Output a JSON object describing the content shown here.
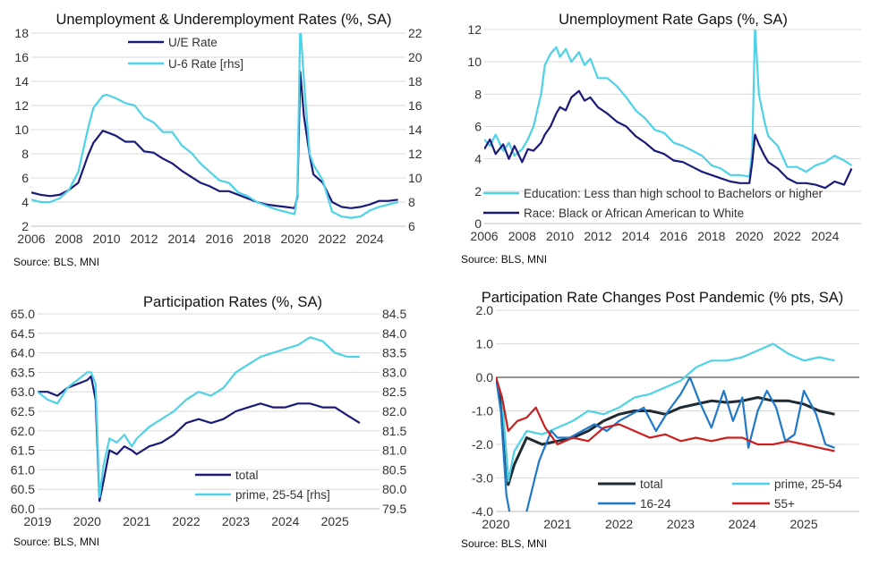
{
  "colors": {
    "dark_navy": "#1a1a7a",
    "light_cyan": "#4dd2e8",
    "black": "#1f2a33",
    "mid_blue": "#1f78c8",
    "red": "#cc1f1f",
    "grid": "#d9d9d9"
  },
  "chart_data": [
    {
      "id": "unemp",
      "type": "line",
      "title": "Unemployment & Underemployment Rates (%, SA)",
      "source": "Source: BLS, MNI",
      "x_ticks": [
        "2006",
        "2008",
        "2010",
        "2012",
        "2014",
        "2016",
        "2018",
        "2020",
        "2022",
        "2024"
      ],
      "y_ticks": [
        "2",
        "4",
        "6",
        "8",
        "10",
        "12",
        "14",
        "16",
        "18"
      ],
      "y2_ticks": [
        "6",
        "8",
        "10",
        "12",
        "14",
        "16",
        "18",
        "20",
        "22"
      ],
      "ylim": [
        2,
        18
      ],
      "y2lim": [
        6,
        22
      ],
      "xlim": [
        2006,
        2025.9
      ],
      "grid": true,
      "legend": "top-center",
      "series": [
        {
          "name": "U/E Rate",
          "axis": "left",
          "color": "#1a1a7a",
          "x": [
            2006,
            2006.5,
            2007,
            2007.5,
            2008,
            2008.5,
            2009,
            2009.3,
            2009.8,
            2010,
            2010.5,
            2011,
            2011.5,
            2012,
            2012.5,
            2013,
            2013.5,
            2014,
            2014.5,
            2015,
            2015.5,
            2016,
            2016.5,
            2017,
            2017.5,
            2018,
            2018.5,
            2019,
            2019.5,
            2020,
            2020.15,
            2020.3,
            2020.5,
            2020.8,
            2021,
            2021.5,
            2022,
            2022.5,
            2023,
            2023.5,
            2024,
            2024.5,
            2025,
            2025.5
          ],
          "y": [
            4.8,
            4.6,
            4.5,
            4.6,
            5.0,
            5.6,
            7.8,
            8.9,
            9.9,
            9.8,
            9.5,
            9.0,
            9.0,
            8.2,
            8.1,
            7.6,
            7.2,
            6.6,
            6.1,
            5.6,
            5.3,
            4.9,
            4.9,
            4.6,
            4.3,
            4.0,
            3.8,
            3.7,
            3.6,
            3.5,
            4.4,
            14.8,
            11.1,
            7.9,
            6.3,
            5.6,
            4.0,
            3.6,
            3.5,
            3.6,
            3.8,
            4.1,
            4.1,
            4.2
          ]
        },
        {
          "name": "U-6 Rate [rhs]",
          "axis": "right",
          "color": "#4dd2e8",
          "x": [
            2006,
            2006.5,
            2007,
            2007.5,
            2008,
            2008.5,
            2009,
            2009.3,
            2009.8,
            2010,
            2010.5,
            2011,
            2011.5,
            2012,
            2012.5,
            2013,
            2013.5,
            2014,
            2014.5,
            2015,
            2015.5,
            2016,
            2016.5,
            2017,
            2017.5,
            2018,
            2018.5,
            2019,
            2019.5,
            2020,
            2020.15,
            2020.3,
            2020.5,
            2020.8,
            2021,
            2021.5,
            2022,
            2022.5,
            2023,
            2023.5,
            2024,
            2024.5,
            2025,
            2025.5
          ],
          "y": [
            8.2,
            8.0,
            8.0,
            8.3,
            9.0,
            10.5,
            14.0,
            15.8,
            16.8,
            16.9,
            16.6,
            16.2,
            16.0,
            15.0,
            14.6,
            13.8,
            13.8,
            12.7,
            12.1,
            11.2,
            10.5,
            9.8,
            9.6,
            8.8,
            8.5,
            8.0,
            7.7,
            7.4,
            7.2,
            7.0,
            8.7,
            22.8,
            18.0,
            12.0,
            11.1,
            9.8,
            7.2,
            6.8,
            6.7,
            6.8,
            7.3,
            7.6,
            7.8,
            8.0
          ]
        }
      ]
    },
    {
      "id": "gaps",
      "type": "line",
      "title": "Unemployment Rate Gaps (%, SA)",
      "source": "Source: BLS, MNI",
      "x_ticks": [
        "2006",
        "2008",
        "2010",
        "2012",
        "2014",
        "2016",
        "2018",
        "2020",
        "2022",
        "2024"
      ],
      "y_ticks": [
        "0",
        "2",
        "4",
        "6",
        "8",
        "10",
        "12"
      ],
      "ylim": [
        0,
        12
      ],
      "xlim": [
        2006,
        2025.9
      ],
      "grid": true,
      "legend": "bottom-right",
      "series": [
        {
          "name": "Education: Less than high school to Bachelors or higher",
          "color": "#4dd2e8",
          "x": [
            2006,
            2006.3,
            2006.6,
            2007,
            2007.3,
            2007.6,
            2008,
            2008.3,
            2008.6,
            2009,
            2009.2,
            2009.5,
            2009.8,
            2010,
            2010.3,
            2010.6,
            2011,
            2011.3,
            2011.6,
            2012,
            2012.5,
            2013,
            2013.5,
            2014,
            2014.5,
            2015,
            2015.5,
            2016,
            2016.5,
            2017,
            2017.5,
            2018,
            2018.5,
            2019,
            2019.5,
            2020,
            2020.15,
            2020.3,
            2020.5,
            2020.8,
            2021,
            2021.5,
            2022,
            2022.5,
            2023,
            2023.5,
            2024,
            2024.5,
            2025,
            2025.4
          ],
          "y": [
            5.2,
            4.8,
            5.5,
            4.5,
            5.0,
            4.2,
            4.6,
            5.2,
            6.0,
            8.0,
            9.8,
            10.5,
            10.9,
            10.3,
            10.8,
            10.0,
            10.6,
            9.8,
            10.2,
            9.0,
            9.0,
            8.5,
            7.8,
            7.0,
            6.5,
            5.8,
            5.6,
            5.0,
            4.8,
            4.5,
            4.2,
            3.6,
            3.4,
            3.0,
            3.0,
            2.9,
            4.5,
            12.2,
            8.0,
            6.3,
            5.4,
            4.8,
            3.5,
            3.5,
            3.2,
            3.6,
            3.8,
            4.2,
            3.9,
            3.6
          ]
        },
        {
          "name": "Race: Black or African American to White",
          "color": "#1a1a7a",
          "x": [
            2006,
            2006.3,
            2006.6,
            2007,
            2007.3,
            2007.6,
            2008,
            2008.3,
            2008.6,
            2009,
            2009.2,
            2009.5,
            2009.8,
            2010,
            2010.3,
            2010.6,
            2011,
            2011.3,
            2011.6,
            2012,
            2012.5,
            2013,
            2013.5,
            2014,
            2014.5,
            2015,
            2015.5,
            2016,
            2016.5,
            2017,
            2017.5,
            2018,
            2018.5,
            2019,
            2019.5,
            2020,
            2020.15,
            2020.3,
            2020.5,
            2020.8,
            2021,
            2021.5,
            2022,
            2022.5,
            2023,
            2023.5,
            2024,
            2024.5,
            2025,
            2025.4
          ],
          "y": [
            4.6,
            5.2,
            4.3,
            4.9,
            4.0,
            4.8,
            3.8,
            4.6,
            4.5,
            5.0,
            5.5,
            6.0,
            6.8,
            7.2,
            7.0,
            7.8,
            8.2,
            7.6,
            7.8,
            7.2,
            6.8,
            6.3,
            6.0,
            5.4,
            5.0,
            4.5,
            4.3,
            3.9,
            3.8,
            3.5,
            3.2,
            3.0,
            2.8,
            2.6,
            2.5,
            2.5,
            3.8,
            5.5,
            4.9,
            4.2,
            3.8,
            3.4,
            2.8,
            2.5,
            2.5,
            2.4,
            2.2,
            2.6,
            2.4,
            3.4
          ]
        }
      ]
    },
    {
      "id": "part",
      "type": "line",
      "title": "Participation Rates (%, SA)",
      "source": "Source: BLS, MNI",
      "x_ticks": [
        "2019",
        "2020",
        "2021",
        "2022",
        "2023",
        "2024",
        "2025"
      ],
      "y_ticks": [
        "60.0",
        "60.5",
        "61.0",
        "61.5",
        "62.0",
        "62.5",
        "63.0",
        "63.5",
        "64.0",
        "64.5",
        "65.0"
      ],
      "y2_ticks": [
        "79.5",
        "80.0",
        "80.5",
        "81.0",
        "81.5",
        "82.0",
        "82.5",
        "83.0",
        "83.5",
        "84.0",
        "84.5"
      ],
      "ylim": [
        60,
        65
      ],
      "y2lim": [
        79.5,
        84.5
      ],
      "xlim": [
        2019,
        2025.9
      ],
      "grid": true,
      "legend": "bottom-center",
      "series": [
        {
          "name": "total",
          "axis": "left",
          "color": "#1a1a7a",
          "x": [
            2019,
            2019.2,
            2019.4,
            2019.6,
            2019.8,
            2020,
            2020.08,
            2020.17,
            2020.25,
            2020.33,
            2020.45,
            2020.6,
            2020.75,
            2020.9,
            2021,
            2021.25,
            2021.5,
            2021.75,
            2022,
            2022.25,
            2022.5,
            2022.75,
            2023,
            2023.25,
            2023.5,
            2023.75,
            2024,
            2024.25,
            2024.5,
            2024.75,
            2025,
            2025.25,
            2025.5
          ],
          "y": [
            63.0,
            63.0,
            62.9,
            63.1,
            63.2,
            63.3,
            63.4,
            62.8,
            60.2,
            60.7,
            61.5,
            61.4,
            61.6,
            61.5,
            61.4,
            61.6,
            61.7,
            61.9,
            62.2,
            62.3,
            62.2,
            62.3,
            62.5,
            62.6,
            62.7,
            62.6,
            62.6,
            62.7,
            62.7,
            62.6,
            62.6,
            62.4,
            62.2
          ]
        },
        {
          "name": "prime, 25-54 [rhs]",
          "axis": "right",
          "color": "#4dd2e8",
          "x": [
            2019,
            2019.2,
            2019.4,
            2019.6,
            2019.8,
            2020,
            2020.08,
            2020.17,
            2020.25,
            2020.33,
            2020.45,
            2020.6,
            2020.75,
            2020.9,
            2021,
            2021.25,
            2021.5,
            2021.75,
            2022,
            2022.25,
            2022.5,
            2022.75,
            2023,
            2023.25,
            2023.5,
            2023.75,
            2024,
            2024.25,
            2024.5,
            2024.75,
            2025,
            2025.25,
            2025.5
          ],
          "y": [
            82.5,
            82.3,
            82.2,
            82.6,
            82.8,
            83.0,
            83.0,
            82.7,
            79.8,
            80.6,
            81.3,
            81.2,
            81.4,
            81.1,
            81.3,
            81.6,
            81.8,
            82.0,
            82.3,
            82.5,
            82.4,
            82.6,
            83.0,
            83.2,
            83.4,
            83.5,
            83.6,
            83.7,
            83.9,
            83.8,
            83.5,
            83.4,
            83.4
          ]
        }
      ]
    },
    {
      "id": "changes",
      "type": "line",
      "title": "Participation Rate Changes Post Pandemic (% pts, SA)",
      "source": "Source: BLS, MNI",
      "x_ticks": [
        "2020",
        "2021",
        "2022",
        "2023",
        "2024",
        "2025"
      ],
      "y_ticks": [
        "-4.0",
        "-3.0",
        "-2.0",
        "-1.0",
        "0.0",
        "1.0",
        "2.0"
      ],
      "ylim": [
        -4,
        2
      ],
      "xlim": [
        2020,
        2025.9
      ],
      "grid": true,
      "legend": "bottom-right",
      "series": [
        {
          "name": "total",
          "color": "#1f2a33",
          "x": [
            2020,
            2020.1,
            2020.2,
            2020.3,
            2020.5,
            2020.75,
            2021,
            2021.25,
            2021.5,
            2021.75,
            2022,
            2022.25,
            2022.5,
            2022.75,
            2023,
            2023.25,
            2023.5,
            2023.75,
            2024,
            2024.25,
            2024.5,
            2024.75,
            2025,
            2025.25,
            2025.5
          ],
          "y": [
            0,
            -0.8,
            -3.2,
            -2.6,
            -1.8,
            -2.0,
            -1.9,
            -1.8,
            -1.6,
            -1.3,
            -1.1,
            -1.0,
            -1.0,
            -1.1,
            -0.9,
            -0.8,
            -0.7,
            -0.75,
            -0.7,
            -0.6,
            -0.7,
            -0.7,
            -0.8,
            -1.0,
            -1.1
          ]
        },
        {
          "name": "prime, 25-54",
          "color": "#4dd2e8",
          "x": [
            2020,
            2020.1,
            2020.2,
            2020.3,
            2020.5,
            2020.75,
            2021,
            2021.25,
            2021.5,
            2021.75,
            2022,
            2022.25,
            2022.5,
            2022.75,
            2023,
            2023.25,
            2023.5,
            2023.75,
            2024,
            2024.25,
            2024.5,
            2024.75,
            2025,
            2025.25,
            2025.5
          ],
          "y": [
            0,
            -0.6,
            -3.1,
            -2.2,
            -1.6,
            -1.7,
            -1.5,
            -1.3,
            -1.0,
            -1.1,
            -0.9,
            -0.6,
            -0.5,
            -0.3,
            -0.1,
            0.3,
            0.5,
            0.5,
            0.6,
            0.8,
            1.0,
            0.7,
            0.5,
            0.6,
            0.5
          ]
        },
        {
          "name": "16-24",
          "color": "#1f78c8",
          "x": [
            2020,
            2020.08,
            2020.17,
            2020.22,
            2020.35,
            2020.5,
            2020.7,
            2020.9,
            2021,
            2021.2,
            2021.4,
            2021.6,
            2021.8,
            2022,
            2022.2,
            2022.4,
            2022.6,
            2022.8,
            2023,
            2023.15,
            2023.3,
            2023.5,
            2023.7,
            2023.85,
            2024,
            2024.1,
            2024.25,
            2024.4,
            2024.55,
            2024.7,
            2024.85,
            2025,
            2025.2,
            2025.35,
            2025.5
          ],
          "y": [
            0,
            -1.0,
            -3.5,
            -4.0,
            -4.2,
            -4.0,
            -2.5,
            -1.6,
            -1.8,
            -1.8,
            -1.6,
            -1.4,
            -1.6,
            -1.3,
            -1.1,
            -0.9,
            -1.6,
            -1.0,
            -0.5,
            0.0,
            -0.7,
            -1.5,
            -0.4,
            -1.3,
            -0.6,
            -2.1,
            -1.0,
            -0.4,
            -0.9,
            -1.9,
            -1.7,
            -0.4,
            -1.1,
            -2.0,
            -2.1
          ]
        },
        {
          "name": "55+",
          "color": "#cc1f1f",
          "x": [
            2020,
            2020.1,
            2020.2,
            2020.35,
            2020.5,
            2020.65,
            2020.8,
            2021,
            2021.25,
            2021.5,
            2021.75,
            2022,
            2022.25,
            2022.5,
            2022.75,
            2023,
            2023.25,
            2023.5,
            2023.75,
            2024,
            2024.25,
            2024.5,
            2024.75,
            2025,
            2025.25,
            2025.5
          ],
          "y": [
            0,
            -0.6,
            -1.6,
            -1.3,
            -1.2,
            -0.9,
            -1.5,
            -2.0,
            -1.8,
            -1.9,
            -1.5,
            -1.4,
            -1.6,
            -1.8,
            -1.7,
            -1.9,
            -1.8,
            -1.9,
            -1.8,
            -1.8,
            -2.0,
            -2.0,
            -1.9,
            -2.0,
            -2.1,
            -2.2
          ]
        }
      ]
    }
  ]
}
